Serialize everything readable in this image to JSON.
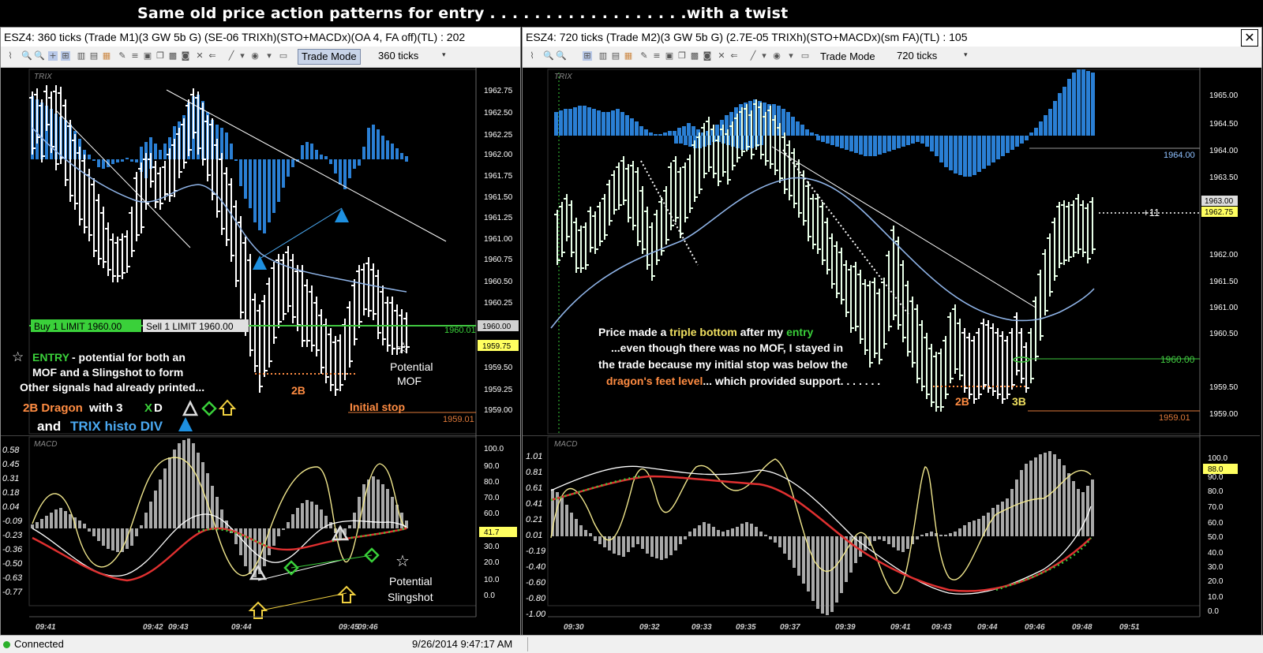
{
  "banner": {
    "title": "Same old price action patterns for entry  . . . . . . . . . . . . . . . . . .with a twist"
  },
  "left": {
    "title": "ESZ4: 360 ticks (Trade M1)(3 GW 5b G)  (SE-06  TRIXh)(STO+MACDx)(OA 4, FA off)(TL) : 202",
    "trade_mode": "Trade Mode",
    "ticks": "360 ticks",
    "price_pane_label": "TRIX",
    "macd_pane_label": "MACD",
    "price_axis": [
      "1962.75",
      "1962.50",
      "1962.25",
      "1962.00",
      "1961.75",
      "1961.50",
      "1961.25",
      "1961.00",
      "1960.75",
      "1960.50",
      "1960.25",
      "1959.50",
      "1959.25",
      "1959.00"
    ],
    "tag_current": "1960.00",
    "tag_yellow": "1959.75",
    "tag_green": "1960.01",
    "tag_stop": "1959.01",
    "order_buy": "Buy 1 LIMIT 1960.00",
    "order_sell": "Sell 1 LIMIT 1960.00",
    "macd_axis_left": [
      "0.58",
      "0.45",
      "0.31",
      "0.18",
      "0.04",
      "-0.09",
      "-0.23",
      "-0.36",
      "-0.50",
      "-0.63",
      "-0.77"
    ],
    "macd_axis_right": [
      "100.0",
      "90.0",
      "80.0",
      "70.0",
      "60.0",
      "50.0",
      "30.0",
      "20.0",
      "10.0",
      "0.0"
    ],
    "macd_tag": "41.7",
    "time_axis": [
      "09:41",
      "09:42",
      "09:43",
      "09:44",
      "09:45",
      "09:46"
    ],
    "notes": {
      "entry_title": "ENTRY",
      "entry_line1": " - potential for both an",
      "entry_line2": "MOF and a Slingshot to form",
      "entry_line3": "Other signals had already printed...",
      "dragon_a": "2B Dragon",
      "dragon_b": " with  3 ",
      "dragon_x": "X",
      "dragon_d": " D",
      "trix_a": "and ",
      "trix_b": "TRIX histo DIV",
      "label_2b": "2B",
      "initial_stop": "Initial stop",
      "potential_mof_1": "Potential",
      "potential_mof_2": "MOF",
      "potential_sling_1": "Potential",
      "potential_sling_2": "Slingshot"
    }
  },
  "right": {
    "title": "ESZ4: 720 ticks (Trade M2)(3 GW 5b G)   (2.7E-05  TRIXh)(STO+MACDx)(sm FA)(TL) : 105",
    "trade_mode": "Trade Mode",
    "ticks": "720 ticks",
    "price_pane_label": "TRIX",
    "macd_pane_label": "MACD",
    "price_axis": [
      "1965.00",
      "1964.50",
      "1964.00",
      "1963.50",
      "1962.00",
      "1961.50",
      "1961.00",
      "1960.50",
      "1959.50",
      "1959.00"
    ],
    "tag_1964": "1964.00",
    "tag_1963": "1963.00",
    "tag_yellow": "1962.75",
    "tag_green": "1960.00",
    "tag_stop": "1959.01",
    "profit": "+11",
    "macd_axis_left": [
      "1.01",
      "0.81",
      "0.61",
      "0.41",
      "0.21",
      "0.01",
      "-0.19",
      "-0.40",
      "-0.60",
      "-0.80",
      "-1.00"
    ],
    "macd_axis_right": [
      "100.0",
      "90.0",
      "80.0",
      "70.0",
      "60.0",
      "50.0",
      "40.0",
      "30.0",
      "20.0",
      "10.0",
      "0.0"
    ],
    "macd_tag": "88.0",
    "time_axis": [
      "09:30",
      "09:32",
      "09:33",
      "09:35",
      "09:37",
      "09:39",
      "09:41",
      "09:43",
      "09:44",
      "09:46",
      "09:48",
      "09:51"
    ],
    "notes": {
      "l1a": "Price made a ",
      "l1b": "triple bottom",
      "l1c": " after my ",
      "l1d": "entry",
      "l2": "...even though there was no MOF, I stayed in",
      "l3": "the trade because my initial stop was below the",
      "l4a": "dragon's feet level",
      "l4b": "... which provided support. . . . . . .",
      "label_2b": "2B",
      "label_3b": "3B"
    }
  },
  "status": {
    "connection": "Connected",
    "timestamp": "9/26/2014 9:47:17 AM"
  },
  "colors": {
    "trix_hist": "#2a7fd4",
    "bars": "#ffffff",
    "ma_line": "#8fb4e8",
    "stoch_yellow": "#f0e68c",
    "macd_white": "#ffffff",
    "macd_red": "#e03030",
    "macd_green_dots": "#3ac83a",
    "hist_gray": "#a8a8a8",
    "green_level": "#40c840",
    "stop_level": "#e07a3a",
    "entry_green": "#3ad03a",
    "orange_text": "#ff8c42",
    "yellow_text": "#f0e060",
    "blue_text": "#4aa8f0"
  }
}
